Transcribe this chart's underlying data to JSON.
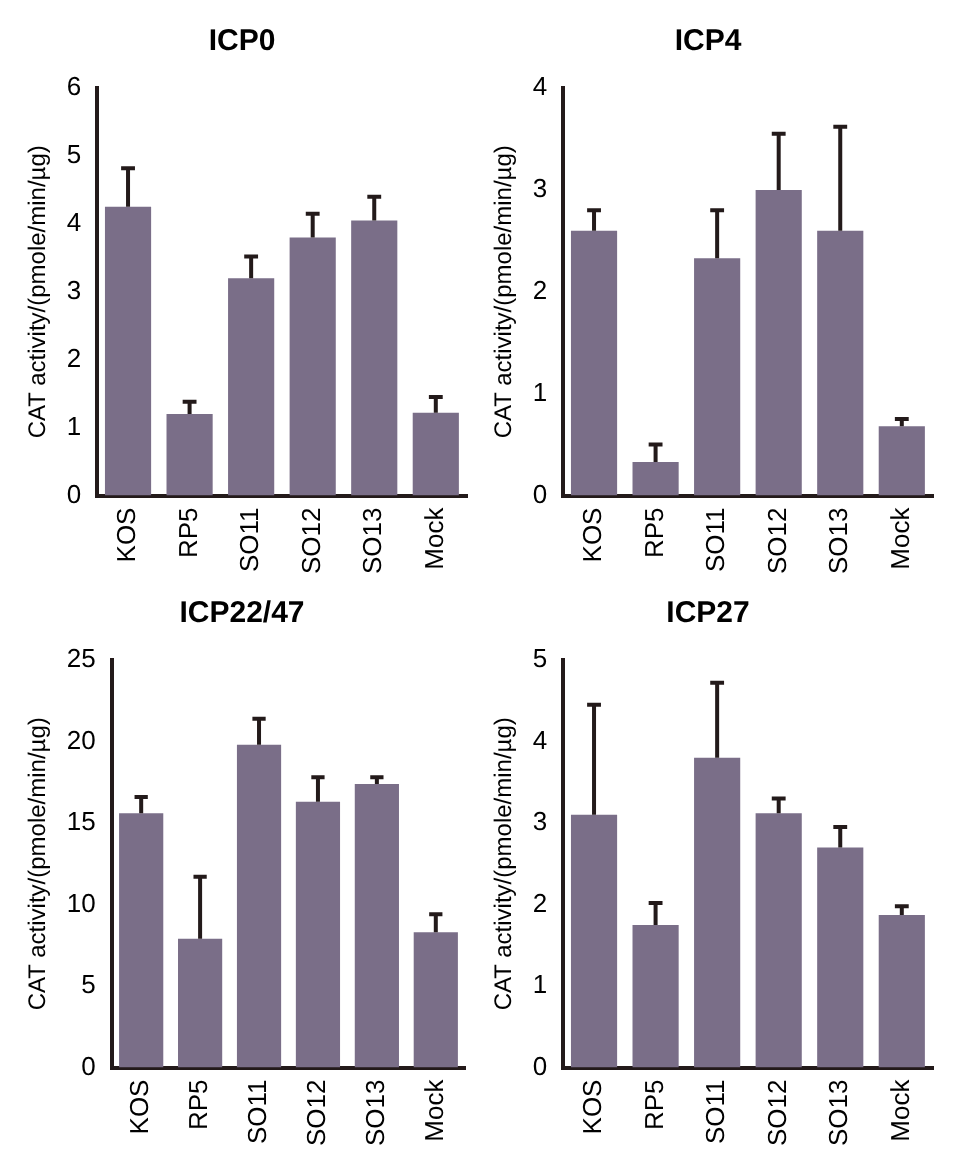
{
  "chart_data": [
    {
      "type": "bar",
      "title": "ICP0",
      "ylabel": "CAT activity/(pmole/min/µg)",
      "categories": [
        "KOS",
        "RP5",
        "SO11",
        "SO12",
        "SO13",
        "Mock"
      ],
      "values": [
        4.25,
        1.2,
        3.2,
        3.8,
        4.05,
        1.22
      ],
      "errors": [
        [
          4.25,
          4.82
        ],
        [
          1.2,
          1.38
        ],
        [
          3.2,
          3.52
        ],
        [
          3.8,
          4.15
        ],
        [
          4.05,
          4.4
        ],
        [
          1.22,
          1.45
        ]
      ],
      "color": "#7a6e88",
      "ylim": [
        0,
        6
      ],
      "yticks": [
        0,
        1,
        2,
        3,
        4,
        5,
        6
      ],
      "grid": false,
      "legend": false
    },
    {
      "type": "bar",
      "title": "ICP4",
      "ylabel": "CAT activity/(pmole/min/µg)",
      "categories": [
        "KOS",
        "RP5",
        "SO11",
        "SO12",
        "SO13",
        "Mock"
      ],
      "values": [
        2.6,
        0.33,
        2.33,
        3.0,
        2.6,
        0.68
      ],
      "errors": [
        [
          2.6,
          2.8
        ],
        [
          0.33,
          0.5
        ],
        [
          2.33,
          2.8
        ],
        [
          3.0,
          3.55
        ],
        [
          2.6,
          3.62
        ],
        [
          0.68,
          0.75
        ]
      ],
      "color": "#7a6e88",
      "ylim": [
        0,
        4
      ],
      "yticks": [
        0,
        1,
        2,
        3,
        4
      ],
      "grid": false,
      "legend": false
    },
    {
      "type": "bar",
      "title": "ICP22/47",
      "ylabel": "CAT activity/(pmole/min/µg)",
      "categories": [
        "KOS",
        "RP5",
        "SO11",
        "SO12",
        "SO13",
        "Mock"
      ],
      "values": [
        15.6,
        7.9,
        19.8,
        16.3,
        17.4,
        8.3
      ],
      "errors": [
        [
          15.6,
          16.6
        ],
        [
          7.9,
          11.7
        ],
        [
          19.8,
          21.4
        ],
        [
          16.3,
          17.8
        ],
        [
          17.4,
          17.8
        ],
        [
          8.3,
          9.4
        ]
      ],
      "color": "#7a6e88",
      "ylim": [
        0,
        25
      ],
      "yticks": [
        0,
        5,
        10,
        15,
        20,
        25
      ],
      "grid": false,
      "legend": false
    },
    {
      "type": "bar",
      "title": "ICP27",
      "ylabel": "CAT activity/(pmole/min/µg)",
      "categories": [
        "KOS",
        "RP5",
        "SO11",
        "SO12",
        "SO13",
        "Mock"
      ],
      "values": [
        3.1,
        1.75,
        3.8,
        3.12,
        2.7,
        1.87
      ],
      "errors": [
        [
          3.1,
          4.45
        ],
        [
          1.75,
          2.02
        ],
        [
          3.8,
          4.72
        ],
        [
          3.12,
          3.3
        ],
        [
          2.7,
          2.95
        ],
        [
          1.87,
          1.98
        ]
      ],
      "color": "#7a6e88",
      "ylim": [
        0,
        5
      ],
      "yticks": [
        0,
        1,
        2,
        3,
        4,
        5
      ],
      "grid": false,
      "legend": false
    }
  ]
}
